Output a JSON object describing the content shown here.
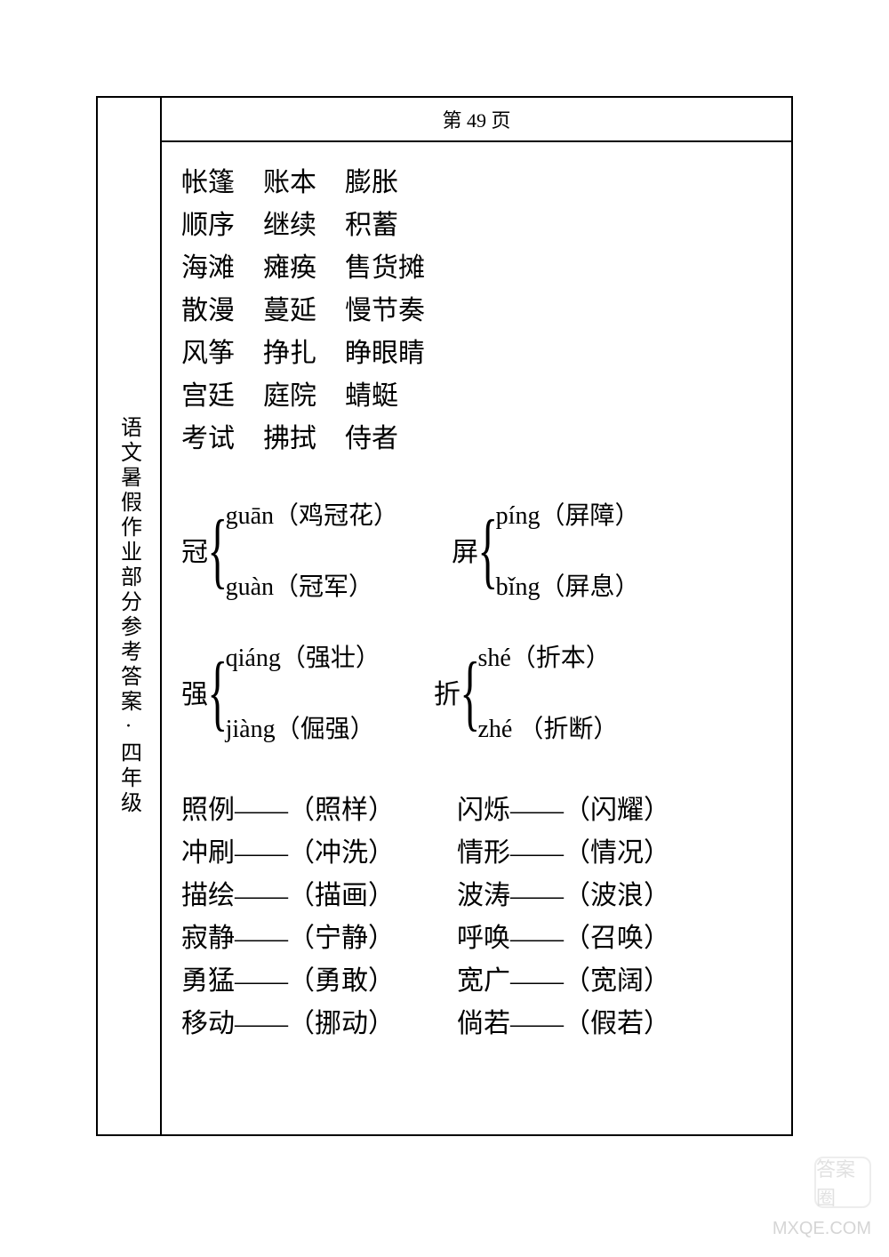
{
  "page_header": "第 49 页",
  "side_label": "语文暑假作业部分参考答案·四年级",
  "word_rows": [
    [
      "帐篷",
      "账本",
      "膨胀"
    ],
    [
      "顺序",
      "继续",
      "积蓄"
    ],
    [
      "海滩",
      "瘫痪",
      "售货摊"
    ],
    [
      "散漫",
      "蔓延",
      "慢节奏"
    ],
    [
      "风筝",
      "挣扎",
      "睁眼睛"
    ],
    [
      "宫廷",
      "庭院",
      "蜻蜓"
    ],
    [
      "考试",
      "拂拭",
      "侍者"
    ]
  ],
  "polyphone_groups": [
    {
      "char": "冠",
      "readings": [
        {
          "pinyin": "guān",
          "word": "（鸡冠花）"
        },
        {
          "pinyin": "guàn",
          "word": "（冠军）"
        }
      ]
    },
    {
      "char": "屏",
      "readings": [
        {
          "pinyin": "píng",
          "word": "（屏障）"
        },
        {
          "pinyin": "bǐng",
          "word": "（屏息）"
        }
      ]
    },
    {
      "char": "强",
      "readings": [
        {
          "pinyin": "qiáng",
          "word": "（强壮）"
        },
        {
          "pinyin": "jiàng",
          "word": "（倔强）"
        }
      ]
    },
    {
      "char": "折",
      "readings": [
        {
          "pinyin": "shé",
          "word": "（折本）"
        },
        {
          "pinyin": "zhé",
          "word": "（折断）"
        }
      ]
    }
  ],
  "synonym_rows": [
    [
      {
        "a": "照例",
        "b": "（照样）"
      },
      {
        "a": "闪烁",
        "b": "（闪耀）"
      }
    ],
    [
      {
        "a": "冲刷",
        "b": "（冲洗）"
      },
      {
        "a": "情形",
        "b": "（情况）"
      }
    ],
    [
      {
        "a": "描绘",
        "b": "（描画）"
      },
      {
        "a": "波涛",
        "b": "（波浪）"
      }
    ],
    [
      {
        "a": "寂静",
        "b": "（宁静）"
      },
      {
        "a": "呼唤",
        "b": "（召唤）"
      }
    ],
    [
      {
        "a": "勇猛",
        "b": "（勇敢）"
      },
      {
        "a": "宽广",
        "b": "（宽阔）"
      }
    ],
    [
      {
        "a": "移动",
        "b": "（挪动）"
      },
      {
        "a": "倘若",
        "b": "（假若）"
      }
    ]
  ],
  "watermark_text": "MXQE.COM",
  "watermark_badge": "答案圈",
  "colors": {
    "text": "#000000",
    "border": "#000000",
    "background": "#ffffff",
    "watermark": "#aaaaaa"
  },
  "typography": {
    "body_fontsize": 30,
    "header_fontsize": 22,
    "side_fontsize": 24,
    "line_height": 48
  },
  "dash": "——"
}
